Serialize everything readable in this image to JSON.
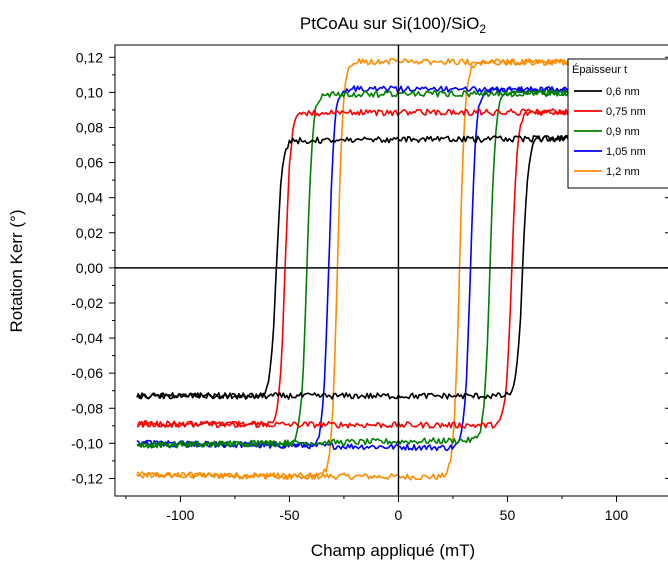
{
  "chart_data": {
    "type": "line",
    "title": "PtCoAu sur Si(100)/SiO",
    "title_subscript": "2",
    "xlabel": "Champ appliqué (mT)",
    "ylabel": "Rotation Kerr (°)",
    "xlim": [
      -130,
      125
    ],
    "ylim": [
      -0.13,
      0.127
    ],
    "xticks": [
      -100,
      -50,
      0,
      50,
      100
    ],
    "xtick_labels": [
      "-100",
      "-50",
      "0",
      "50",
      "100"
    ],
    "yticks": [
      -0.12,
      -0.1,
      -0.08,
      -0.06,
      -0.04,
      -0.02,
      0.0,
      0.02,
      0.04,
      0.06,
      0.08,
      0.1,
      0.12
    ],
    "ytick_labels": [
      "-0,12",
      "-0,10",
      "-0,08",
      "-0,06",
      "-0,04",
      "-0,02",
      "0,00",
      "0,02",
      "0,04",
      "0,06",
      "0,08",
      "0,10",
      "0,12"
    ],
    "grid": false,
    "zero_lines": true,
    "legend": {
      "title": "Épaisseur t",
      "position": "top-right"
    },
    "series": [
      {
        "name": "0,6 nm",
        "color": "#000000",
        "x_min": -120,
        "x_max": 114,
        "upper": 0.074,
        "lower": -0.073,
        "hc_left": -56,
        "hc_right": 57,
        "upper_start": 0.072,
        "upper_end": 0.074,
        "lower_start": -0.073,
        "lower_end": -0.073
      },
      {
        "name": "0,75 nm",
        "color": "#ff0000",
        "x_min": -120,
        "x_max": 114,
        "upper": 0.088,
        "lower": -0.09,
        "hc_left": -52,
        "hc_right": 52,
        "upper_start": 0.088,
        "upper_end": 0.089,
        "lower_start": -0.089,
        "lower_end": -0.09
      },
      {
        "name": "0,9 nm",
        "color": "#008000",
        "x_min": -120,
        "x_max": 114,
        "upper": 0.1,
        "lower": -0.1,
        "hc_left": -42,
        "hc_right": 42,
        "upper_start": 0.098,
        "upper_end": 0.1,
        "lower_start": -0.101,
        "lower_end": -0.097
      },
      {
        "name": "1,05 nm",
        "color": "#0000ff",
        "x_min": -120,
        "x_max": 114,
        "upper": 0.102,
        "lower": -0.102,
        "hc_left": -32,
        "hc_right": 33,
        "upper_start": 0.103,
        "upper_end": 0.101,
        "lower_start": -0.1,
        "lower_end": -0.104
      },
      {
        "name": "1,2 nm",
        "color": "#ff8c00",
        "x_min": -120,
        "x_max": 114,
        "upper": 0.118,
        "lower": -0.119,
        "hc_left": -28,
        "hc_right": 28,
        "upper_start": 0.118,
        "upper_end": 0.117,
        "lower_start": -0.118,
        "lower_end": -0.12
      }
    ]
  }
}
